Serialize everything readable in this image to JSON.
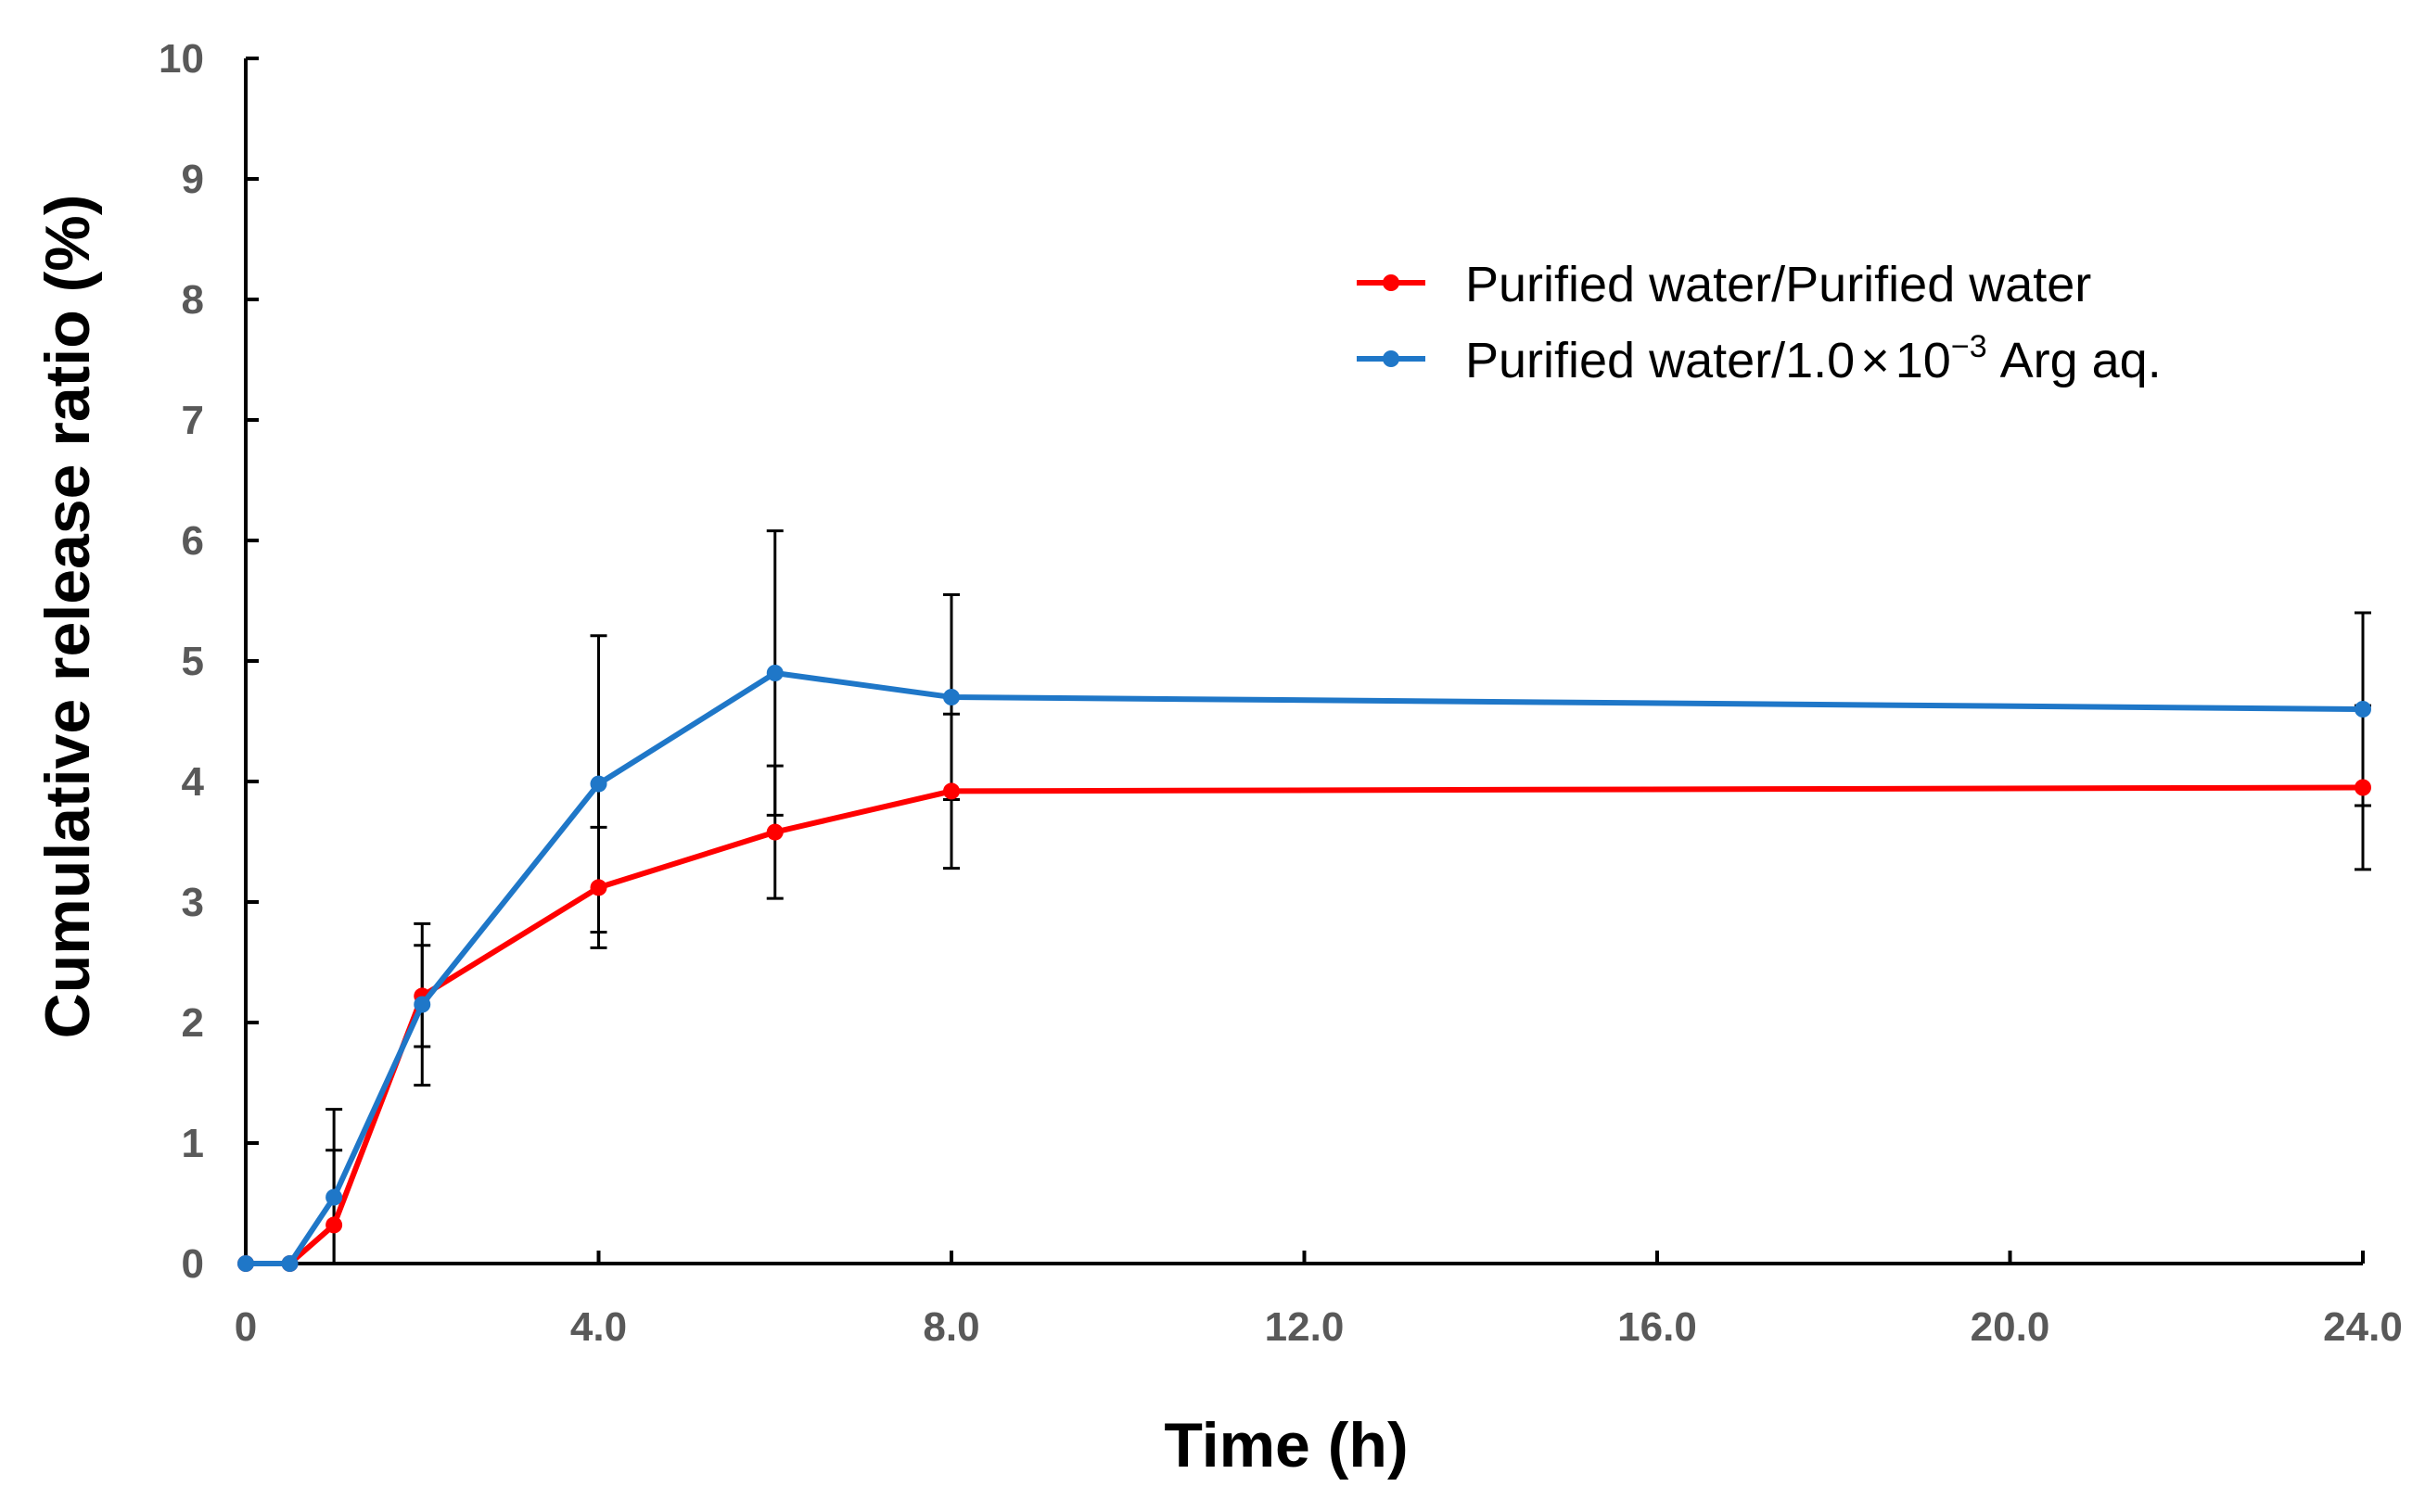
{
  "chart_data": {
    "type": "line",
    "title": "",
    "xlabel": "Time (h)",
    "ylabel": "Cumulative release ratio (%)",
    "xlim": [
      0,
      24
    ],
    "ylim": [
      0,
      10
    ],
    "x_ticks": [
      0,
      4,
      8,
      12,
      16,
      20,
      24
    ],
    "x_tick_labels": [
      "0",
      "4.0",
      "8.0",
      "12.0",
      "16.0",
      "20.0",
      "24.0"
    ],
    "y_ticks": [
      0,
      1,
      2,
      3,
      4,
      5,
      6,
      7,
      8,
      9,
      10
    ],
    "y_tick_labels": [
      "0",
      "1",
      "2",
      "3",
      "4",
      "5",
      "6",
      "7",
      "8",
      "9",
      "10"
    ],
    "grid": false,
    "legend_position": "top-right",
    "series": [
      {
        "name": "Purified water/Purified water",
        "color": "#ff0000",
        "x": [
          0,
          0.5,
          1,
          2,
          4,
          6,
          8,
          24
        ],
        "y": [
          0,
          0,
          0.32,
          2.22,
          3.12,
          3.58,
          3.92,
          3.95
        ],
        "err": [
          0,
          0,
          0.62,
          0.42,
          0.5,
          0.55,
          0.64,
          0.68
        ]
      },
      {
        "name": "Purified water/1.0×10⁻³ Arg aq.",
        "legend_main": "Purified water/1.0",
        "legend_times": "×",
        "legend_base": "10",
        "legend_exp": "−3",
        "legend_tail": "Arg aq.",
        "color": "#1f77c8",
        "x": [
          0,
          0.5,
          1,
          2,
          4,
          6,
          8,
          24
        ],
        "y": [
          0,
          0,
          0.55,
          2.15,
          3.98,
          4.9,
          4.7,
          4.6
        ],
        "err": [
          0,
          0,
          0.73,
          0.67,
          1.23,
          1.18,
          0.85,
          0.8
        ]
      }
    ]
  }
}
